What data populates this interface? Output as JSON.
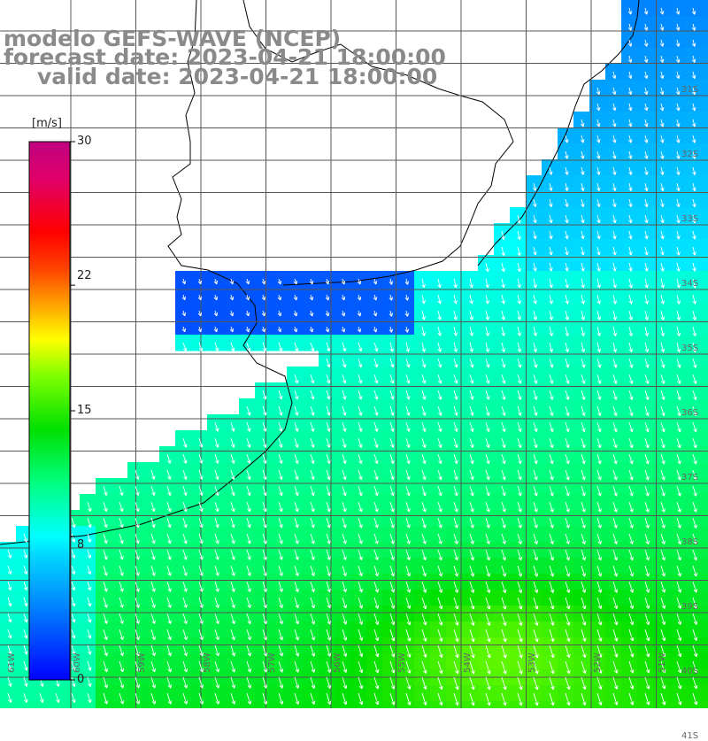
{
  "header": {
    "line1": "modelo GEFS-WAVE (NCEP)",
    "line2": "forecast date: 2023-04-21 18:00:00",
    "line3": "valid date: 2023-04-21 18:00:00"
  },
  "colorbar": {
    "units": "[m/s]",
    "labels": [
      "30",
      "22",
      "15",
      "8",
      "0"
    ],
    "ticks": [
      30,
      22,
      15,
      8,
      0
    ],
    "range": [
      0,
      30
    ],
    "colors": [
      "#0000ff",
      "#0080ff",
      "#00d8ff",
      "#00ffff",
      "#00ff80",
      "#00e000",
      "#80ff00",
      "#ffff00",
      "#ffa000",
      "#ff4000",
      "#ff0000",
      "#e0006a",
      "#c00080"
    ]
  },
  "map": {
    "variable": "wind speed and direction",
    "lon_labels": [
      "61W",
      "60W",
      "59W",
      "58W",
      "57W",
      "56W",
      "55W",
      "54W",
      "53W",
      "52W",
      "51W"
    ],
    "lat_labels": [
      "31S",
      "32S",
      "33S",
      "34S",
      "35S",
      "36S",
      "37S",
      "38S",
      "39S",
      "40S",
      "41S"
    ],
    "land_color": "#ffffff",
    "grid_color": "#555555"
  }
}
